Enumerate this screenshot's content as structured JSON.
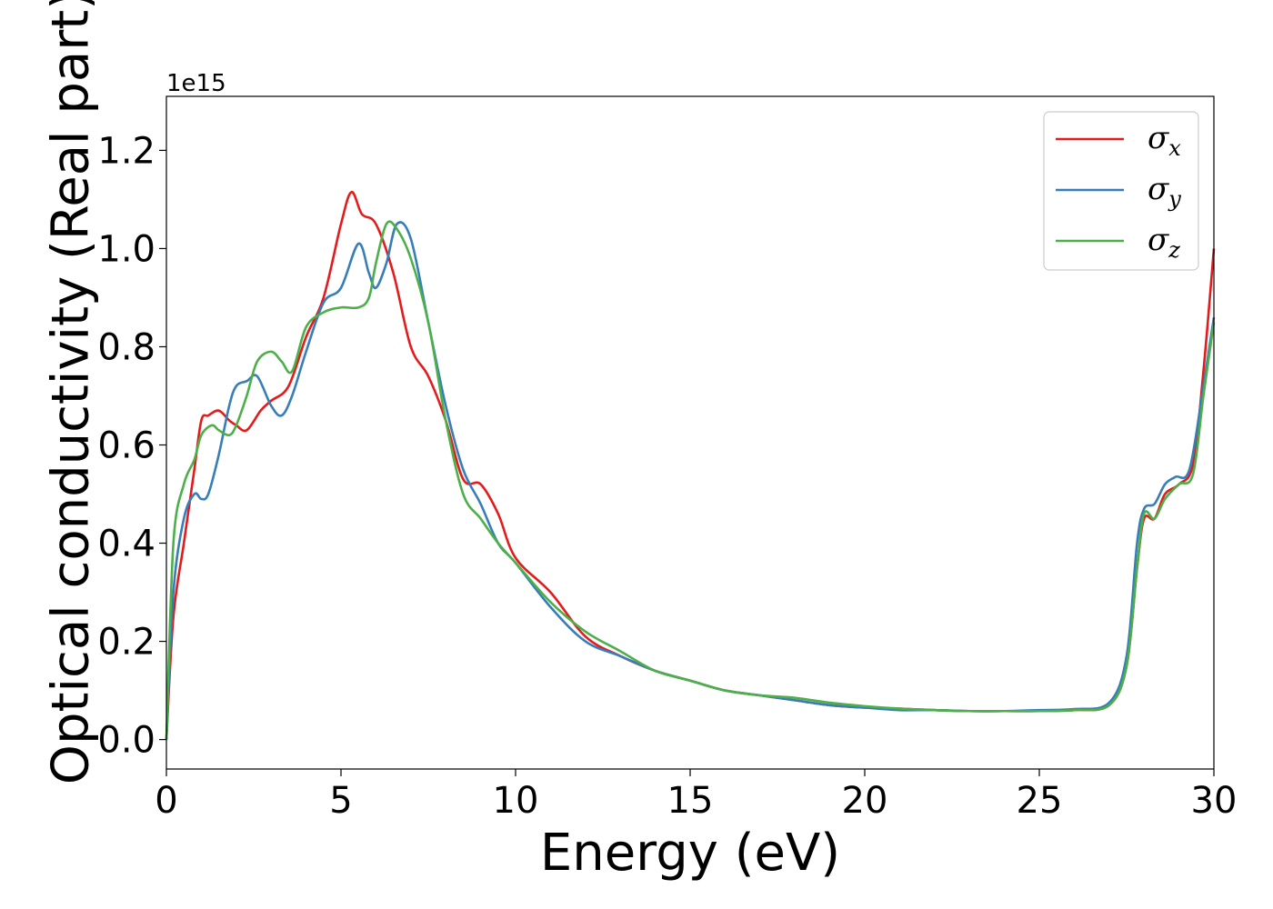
{
  "chart_data": {
    "type": "line",
    "xlabel": "Energy (eV)",
    "ylabel": "Optical conductivity (Real part)",
    "y_offset_label": "1e15",
    "xlim": [
      0,
      30
    ],
    "ylim": [
      -0.06,
      1.31
    ],
    "xticks": [
      0,
      5,
      10,
      15,
      20,
      25,
      30
    ],
    "xtick_labels": [
      "0",
      "5",
      "10",
      "15",
      "20",
      "25",
      "30"
    ],
    "yticks": [
      0.0,
      0.2,
      0.4,
      0.6,
      0.8,
      1.0,
      1.2
    ],
    "ytick_labels": [
      "0.0",
      "0.2",
      "0.4",
      "0.6",
      "0.8",
      "1.0",
      "1.2"
    ],
    "grid": false,
    "legend_position": "top-right",
    "series": [
      {
        "name": "σx",
        "symbol": "σ",
        "subscript": "x",
        "color": "#e41a1c",
        "x": [
          0,
          0.2,
          0.5,
          0.8,
          1.0,
          1.2,
          1.5,
          1.8,
          2.0,
          2.3,
          2.7,
          3.0,
          3.5,
          4.0,
          4.5,
          5.0,
          5.3,
          5.6,
          6.0,
          6.5,
          7.0,
          7.5,
          8.0,
          8.5,
          9.0,
          9.5,
          10.0,
          11.0,
          12.0,
          13.0,
          14.0,
          15.0,
          16.0,
          17.0,
          18.0,
          19.0,
          20.0,
          21.0,
          22.0,
          23.0,
          24.0,
          25.0,
          26.0,
          27.0,
          27.5,
          27.8,
          28.0,
          28.3,
          28.6,
          29.0,
          29.4,
          29.7,
          30.0
        ],
        "values": [
          0.0,
          0.25,
          0.4,
          0.55,
          0.65,
          0.66,
          0.67,
          0.65,
          0.64,
          0.63,
          0.67,
          0.69,
          0.72,
          0.82,
          0.9,
          1.05,
          1.115,
          1.07,
          1.05,
          0.95,
          0.8,
          0.74,
          0.65,
          0.53,
          0.52,
          0.46,
          0.37,
          0.3,
          0.21,
          0.17,
          0.14,
          0.12,
          0.1,
          0.09,
          0.08,
          0.07,
          0.065,
          0.063,
          0.06,
          0.058,
          0.058,
          0.058,
          0.06,
          0.07,
          0.15,
          0.35,
          0.45,
          0.45,
          0.5,
          0.52,
          0.56,
          0.75,
          1.0
        ]
      },
      {
        "name": "σy",
        "symbol": "σ",
        "subscript": "y",
        "color": "#377eb8",
        "x": [
          0,
          0.2,
          0.5,
          0.8,
          1.0,
          1.2,
          1.5,
          1.8,
          2.0,
          2.3,
          2.6,
          3.0,
          3.3,
          3.6,
          4.0,
          4.5,
          5.0,
          5.5,
          5.8,
          6.0,
          6.3,
          6.6,
          7.0,
          7.5,
          8.0,
          8.5,
          9.0,
          9.5,
          10.0,
          11.0,
          12.0,
          13.0,
          14.0,
          15.0,
          16.0,
          17.0,
          18.0,
          19.0,
          20.0,
          21.0,
          22.0,
          23.0,
          24.0,
          25.0,
          26.0,
          27.0,
          27.5,
          27.8,
          28.0,
          28.3,
          28.6,
          28.9,
          29.3,
          29.7,
          30.0
        ],
        "values": [
          0.0,
          0.3,
          0.45,
          0.5,
          0.49,
          0.5,
          0.58,
          0.68,
          0.72,
          0.73,
          0.74,
          0.68,
          0.66,
          0.7,
          0.79,
          0.89,
          0.92,
          1.01,
          0.95,
          0.92,
          0.97,
          1.05,
          1.02,
          0.85,
          0.68,
          0.55,
          0.48,
          0.4,
          0.36,
          0.27,
          0.2,
          0.17,
          0.14,
          0.12,
          0.1,
          0.09,
          0.08,
          0.07,
          0.065,
          0.06,
          0.06,
          0.058,
          0.058,
          0.06,
          0.062,
          0.075,
          0.17,
          0.4,
          0.47,
          0.48,
          0.52,
          0.535,
          0.55,
          0.72,
          0.86
        ]
      },
      {
        "name": "σz",
        "symbol": "σ",
        "subscript": "z",
        "color": "#4daf4a",
        "x": [
          0,
          0.2,
          0.5,
          0.8,
          1.0,
          1.3,
          1.5,
          1.8,
          2.0,
          2.3,
          2.6,
          3.0,
          3.3,
          3.6,
          4.0,
          4.5,
          5.0,
          5.5,
          5.8,
          6.0,
          6.3,
          6.6,
          7.0,
          7.5,
          8.0,
          8.5,
          9.0,
          9.5,
          10.0,
          11.0,
          12.0,
          13.0,
          14.0,
          15.0,
          16.0,
          17.0,
          18.0,
          19.0,
          20.0,
          21.0,
          22.0,
          23.0,
          24.0,
          25.0,
          26.0,
          27.0,
          27.5,
          27.8,
          28.0,
          28.3,
          28.6,
          29.0,
          29.4,
          29.7,
          30.0
        ],
        "values": [
          0.0,
          0.4,
          0.52,
          0.57,
          0.62,
          0.64,
          0.63,
          0.62,
          0.64,
          0.7,
          0.77,
          0.79,
          0.77,
          0.75,
          0.84,
          0.87,
          0.88,
          0.88,
          0.9,
          0.97,
          1.05,
          1.04,
          0.98,
          0.85,
          0.65,
          0.5,
          0.45,
          0.4,
          0.36,
          0.28,
          0.22,
          0.18,
          0.14,
          0.12,
          0.1,
          0.09,
          0.085,
          0.075,
          0.068,
          0.063,
          0.06,
          0.058,
          0.058,
          0.058,
          0.06,
          0.07,
          0.15,
          0.35,
          0.46,
          0.45,
          0.49,
          0.52,
          0.54,
          0.7,
          0.85
        ]
      }
    ]
  }
}
